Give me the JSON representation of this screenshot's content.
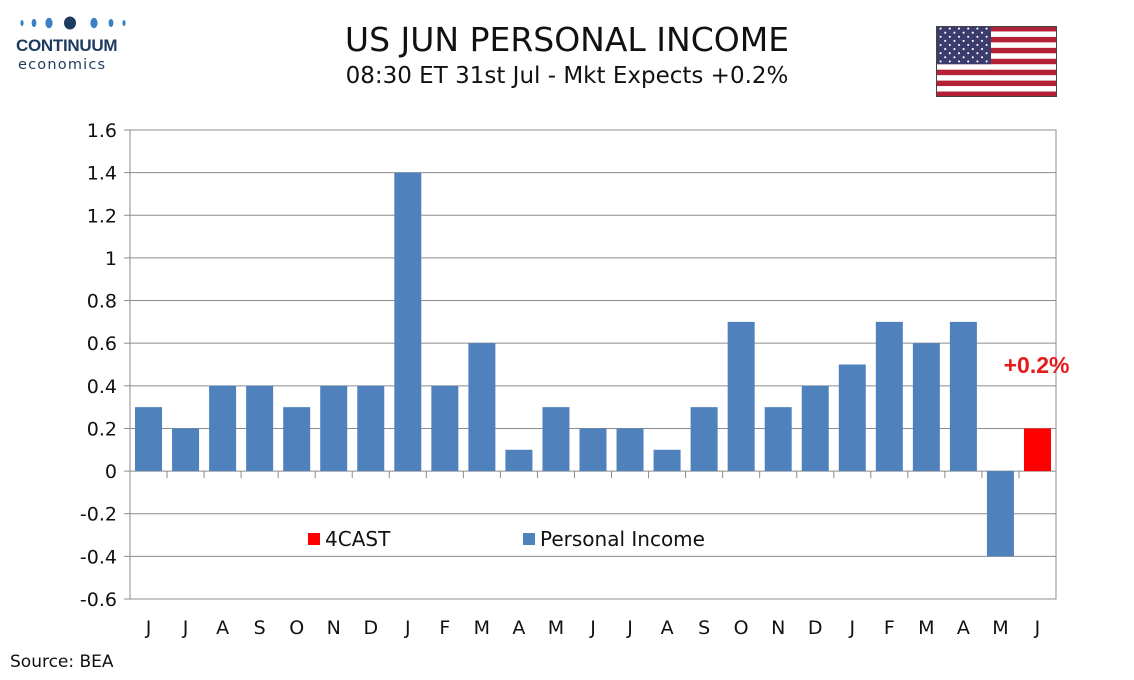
{
  "header": {
    "title": "US JUN PERSONAL INCOME",
    "subtitle": "08:30 ET 31st Jul - Mkt Expects +0.2%"
  },
  "logo": {
    "name": "CONTINUUM",
    "tagline": "economics"
  },
  "flag_icon": "us-flag-icon",
  "source": "Source: BEA",
  "colors": {
    "actual": "#4f81bd",
    "forecast": "#ff0000",
    "forecast_label": "#e31b1b"
  },
  "chart_data": {
    "type": "bar",
    "title": "",
    "xlabel": "",
    "ylabel": "",
    "ylim": [
      -0.6,
      1.6
    ],
    "yticks": [
      "1.6",
      "1.4",
      "1.2",
      "1",
      "0.8",
      "0.6",
      "0.4",
      "0.2",
      "0",
      "-0.2",
      "-0.4",
      "-0.6"
    ],
    "categories": [
      "J",
      "J",
      "A",
      "S",
      "O",
      "N",
      "D",
      "J",
      "F",
      "M",
      "A",
      "M",
      "J",
      "J",
      "A",
      "S",
      "O",
      "N",
      "D",
      "J",
      "F",
      "M",
      "A",
      "M",
      "J"
    ],
    "series": [
      {
        "name": "Personal Income",
        "values": [
          0.3,
          0.2,
          0.4,
          0.4,
          0.3,
          0.4,
          0.4,
          1.4,
          0.4,
          0.6,
          0.1,
          0.3,
          0.2,
          0.2,
          0.1,
          0.3,
          0.7,
          0.3,
          0.4,
          0.5,
          0.7,
          0.6,
          0.7,
          -0.4,
          null
        ]
      },
      {
        "name": "4CAST",
        "values": [
          null,
          null,
          null,
          null,
          null,
          null,
          null,
          null,
          null,
          null,
          null,
          null,
          null,
          null,
          null,
          null,
          null,
          null,
          null,
          null,
          null,
          null,
          null,
          null,
          0.2
        ]
      }
    ],
    "annotation": "+0.2%",
    "legend": [
      "4CAST",
      "Personal Income"
    ],
    "legend_position": "bottom-center inside plot",
    "grid": true
  }
}
